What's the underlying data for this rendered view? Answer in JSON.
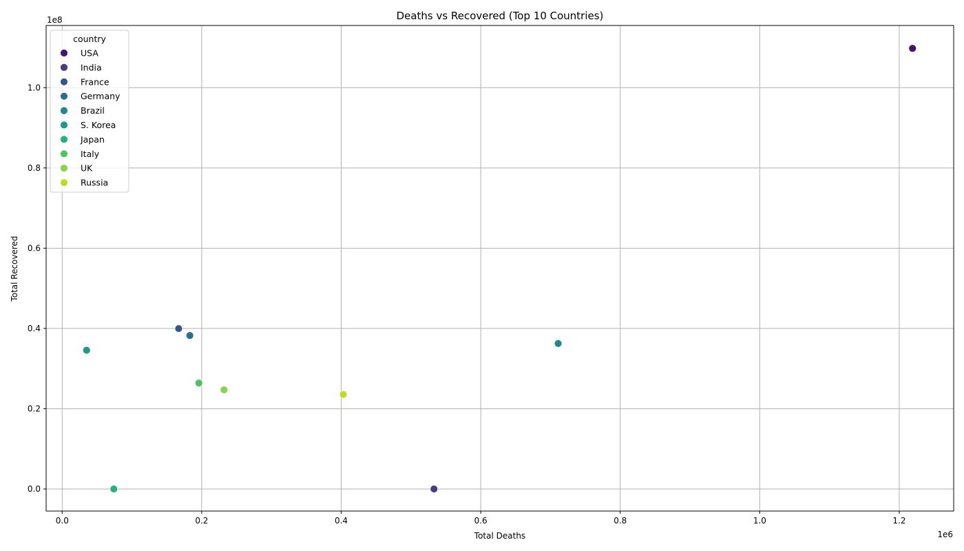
{
  "chart_data": {
    "type": "scatter",
    "title": "Deaths vs Recovered (Top 10 Countries)",
    "xlabel": "Total Deaths",
    "ylabel": "Total Recovered",
    "x_offset_label": "1e6",
    "y_offset_label": "1e8",
    "x_scale": 1000000,
    "y_scale": 100000000,
    "xlim": [
      -0.023,
      1.278
    ],
    "ylim": [
      -0.055,
      1.155
    ],
    "x_ticks": [
      0.0,
      0.2,
      0.4,
      0.6,
      0.8,
      1.0,
      1.2
    ],
    "x_tick_labels": [
      "0.0",
      "0.2",
      "0.4",
      "0.6",
      "0.8",
      "1.0",
      "1.2"
    ],
    "y_ticks": [
      0.0,
      0.2,
      0.4,
      0.6,
      0.8,
      1.0
    ],
    "y_tick_labels": [
      "0.0",
      "0.2",
      "0.4",
      "0.6",
      "0.8",
      "1.0"
    ],
    "grid": true,
    "legend": {
      "title": "country",
      "placement": "top-left"
    },
    "points": [
      {
        "country": "USA",
        "deaths": 1219000,
        "recovered": 109800000,
        "color": "#46146b"
      },
      {
        "country": "India",
        "deaths": 533000,
        "recovered": 0,
        "color": "#453c82"
      },
      {
        "country": "France",
        "deaths": 167000,
        "recovered": 39970000,
        "color": "#35578d"
      },
      {
        "country": "Germany",
        "deaths": 183000,
        "recovered": 38240000,
        "color": "#2b6f8e"
      },
      {
        "country": "Brazil",
        "deaths": 711000,
        "recovered": 36250000,
        "color": "#25858e"
      },
      {
        "country": "S. Korea",
        "deaths": 35000,
        "recovered": 34570000,
        "color": "#1f9a89"
      },
      {
        "country": "Japan",
        "deaths": 74000,
        "recovered": 0,
        "color": "#27b07d"
      },
      {
        "country": "Italy",
        "deaths": 196000,
        "recovered": 26400000,
        "color": "#4fc464"
      },
      {
        "country": "UK",
        "deaths": 232000,
        "recovered": 24700000,
        "color": "#86d54a"
      },
      {
        "country": "Russia",
        "deaths": 403000,
        "recovered": 23550000,
        "color": "#bfdb26"
      }
    ]
  }
}
